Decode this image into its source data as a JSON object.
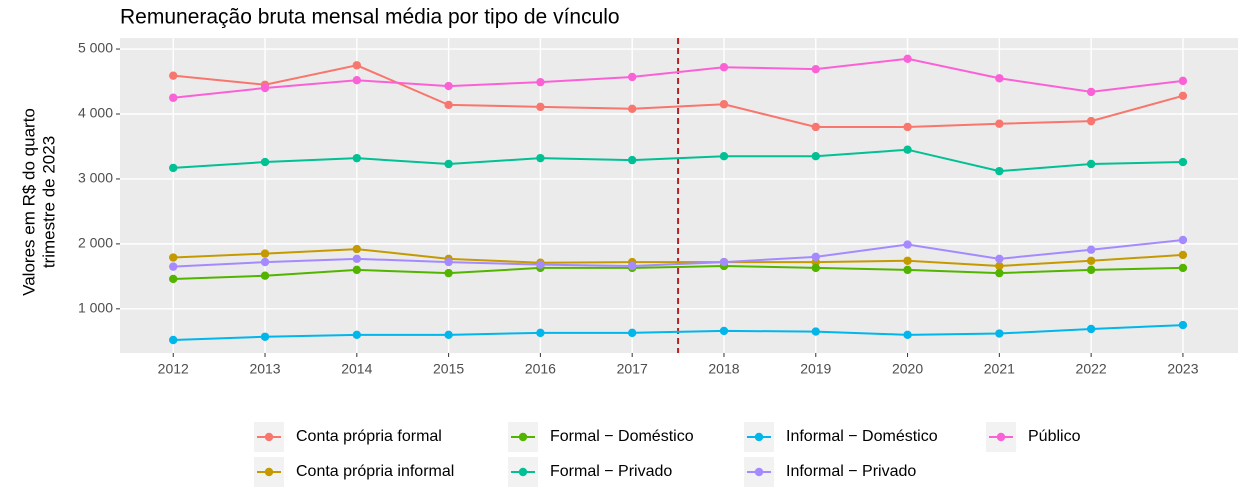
{
  "chart_data": {
    "type": "line",
    "title": "Remuneração bruta mensal média por tipo de vínculo",
    "ylabel": [
      "Valores em R$ do quarto",
      "trimestre de 2023"
    ],
    "x": [
      2012,
      2013,
      2014,
      2015,
      2016,
      2017,
      2018,
      2019,
      2020,
      2021,
      2022,
      2023
    ],
    "xlim": [
      2011.42,
      2023.6
    ],
    "xticks": [
      2012,
      2013,
      2014,
      2015,
      2016,
      2017,
      2018,
      2019,
      2020,
      2021,
      2022,
      2023
    ],
    "ylim": [
      320,
      5170
    ],
    "yticks": [
      {
        "value": 1000,
        "label": "1 000"
      },
      {
        "value": 2000,
        "label": "2 000"
      },
      {
        "value": 3000,
        "label": "3 000"
      },
      {
        "value": 4000,
        "label": "4 000"
      },
      {
        "value": 5000,
        "label": "5 000"
      }
    ],
    "grid": true,
    "vline": {
      "x": 2017.5,
      "color": "#B22222"
    },
    "legend": "bottom",
    "series": [
      {
        "name": "Conta própria formal",
        "color": "#F8766D",
        "values": [
          4590,
          4450,
          4750,
          4140,
          4110,
          4080,
          4150,
          3800,
          3800,
          3850,
          3890,
          4280
        ]
      },
      {
        "name": "Conta própria informal",
        "color": "#C49A00",
        "values": [
          1790,
          1850,
          1920,
          1770,
          1710,
          1720,
          1720,
          1720,
          1740,
          1660,
          1740,
          1830
        ]
      },
      {
        "name": "Formal − Doméstico",
        "color": "#53B400",
        "values": [
          1460,
          1510,
          1600,
          1550,
          1630,
          1630,
          1660,
          1630,
          1600,
          1550,
          1600,
          1630
        ]
      },
      {
        "name": "Formal − Privado",
        "color": "#00C094",
        "values": [
          3170,
          3260,
          3320,
          3230,
          3320,
          3290,
          3350,
          3350,
          3450,
          3120,
          3230,
          3260
        ]
      },
      {
        "name": "Informal − Doméstico",
        "color": "#00B6EB",
        "values": [
          520,
          570,
          600,
          600,
          630,
          630,
          660,
          650,
          600,
          620,
          690,
          750
        ]
      },
      {
        "name": "Informal − Privado",
        "color": "#A58AFF",
        "values": [
          1650,
          1720,
          1770,
          1720,
          1680,
          1660,
          1720,
          1800,
          1990,
          1770,
          1910,
          2060
        ]
      },
      {
        "name": "Público",
        "color": "#FB61D7",
        "values": [
          4250,
          4400,
          4520,
          4430,
          4490,
          4570,
          4720,
          4690,
          4850,
          4550,
          4340,
          4510
        ]
      }
    ]
  }
}
